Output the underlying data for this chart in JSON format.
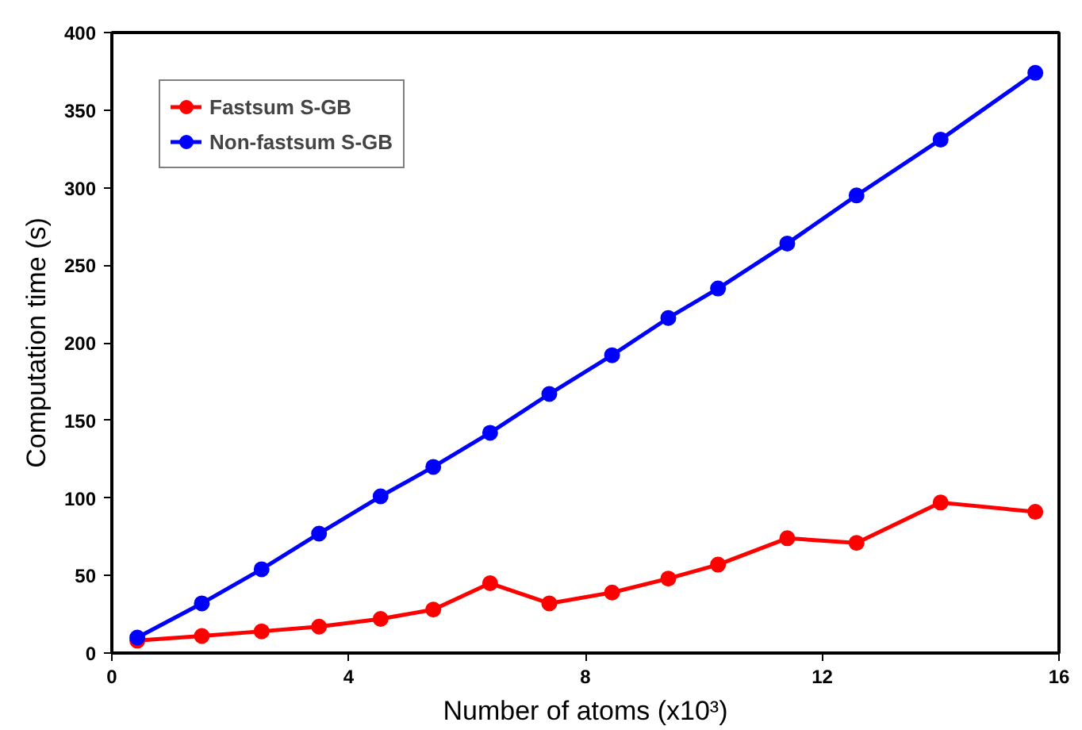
{
  "chart_data": {
    "type": "line",
    "xlabel": "Number of atoms (x10³)",
    "ylabel": "Computation time (s)",
    "x": [
      0.43,
      1.52,
      2.53,
      3.5,
      4.54,
      5.43,
      6.39,
      7.39,
      8.45,
      9.4,
      10.24,
      11.41,
      12.58,
      14.0,
      15.6
    ],
    "series": [
      {
        "name": "Fastsum S-GB",
        "color": "#ff0000",
        "values": [
          8,
          11,
          14,
          17,
          22,
          28,
          45,
          32,
          39,
          48,
          57,
          74,
          71,
          97,
          91
        ]
      },
      {
        "name": "Non-fastsum S-GB",
        "color": "#0000ff",
        "values": [
          10,
          32,
          54,
          77,
          101,
          120,
          142,
          167,
          192,
          216,
          235,
          264,
          295,
          331,
          374
        ]
      }
    ],
    "xlim": [
      0,
      16
    ],
    "xticks": [
      0,
      4,
      8,
      12,
      16
    ],
    "ylim": [
      0,
      400
    ],
    "yticks": [
      0,
      50,
      100,
      150,
      200,
      250,
      300,
      350,
      400
    ],
    "grid": false,
    "legend": "top left",
    "marker": "circle",
    "line_style": "solid"
  }
}
